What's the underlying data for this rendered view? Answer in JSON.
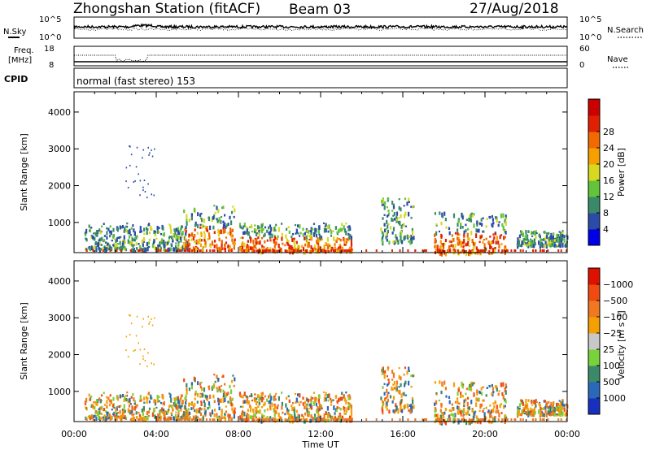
{
  "header": {
    "station": "Zhongshan Station (fitACF)",
    "beam": "Beam 03",
    "date": "27/Aug/2018"
  },
  "noise_panel": {
    "left_label": "N.Sky",
    "left_tick_top": "10^5",
    "left_tick_bottom": "10^0",
    "right_label": "N.Search",
    "right_tick_top": "10^5",
    "right_tick_bottom": "10^0"
  },
  "freq_panel": {
    "left_label_line1": "Freq.",
    "left_label_line2": "[MHz]",
    "left_tick_top": "18",
    "left_tick_bottom": "8",
    "right_label": "Nave",
    "right_tick_top": "60",
    "right_tick_bottom": "0"
  },
  "cpid_panel": {
    "label": "CPID",
    "text": "normal (fast stereo) 153"
  },
  "chart_data": [
    {
      "type": "heatmap",
      "name": "power",
      "ylabel": "Slant Range [km]",
      "ylim": [
        180,
        4550
      ],
      "yticks": [
        1000,
        2000,
        3000,
        4000
      ],
      "xticks": [
        "00:00",
        "04:00",
        "08:00",
        "12:00",
        "16:00",
        "20:00",
        "00:00"
      ],
      "colorbar": {
        "label": "Power [dB]",
        "tick_labels": [
          "4",
          "8",
          "12",
          "16",
          "20",
          "24",
          "28"
        ],
        "colors": [
          "#0000e6",
          "#2a4ba8",
          "#3a8a6a",
          "#62c43a",
          "#d8d820",
          "#f5a000",
          "#f06a00",
          "#e02000",
          "#cc0000"
        ]
      },
      "scatter_blocks": [
        {
          "t0": 0.5,
          "t1": 5.5,
          "r0": 300,
          "r1": 1000,
          "level": "low"
        },
        {
          "t0": 5.3,
          "t1": 7.8,
          "r0": 300,
          "r1": 1500,
          "level": "high"
        },
        {
          "t0": 8.0,
          "t1": 13.5,
          "r0": 250,
          "r1": 1000,
          "level": "high"
        },
        {
          "t0": 14.9,
          "t1": 16.5,
          "r0": 500,
          "r1": 1700,
          "level": "low"
        },
        {
          "t0": 17.5,
          "t1": 21.0,
          "r0": 200,
          "r1": 1300,
          "level": "high"
        },
        {
          "t0": 21.5,
          "t1": 24.0,
          "r0": 400,
          "r1": 800,
          "level": "low"
        }
      ]
    },
    {
      "type": "heatmap",
      "name": "velocity",
      "ylabel": "Slant Range [km]",
      "ylim": [
        180,
        4550
      ],
      "yticks": [
        1000,
        2000,
        3000,
        4000
      ],
      "xticks": [
        "00:00",
        "04:00",
        "08:00",
        "12:00",
        "16:00",
        "20:00",
        "00:00"
      ],
      "xlabel": "Time UT",
      "colorbar": {
        "label": "Velocity [m s⁻¹]",
        "tick_labels": [
          "1000",
          "500",
          "100",
          "25",
          "−25",
          "−100",
          "−500",
          "−1000"
        ],
        "colors": [
          "#1830c0",
          "#2a68b8",
          "#3a8a6a",
          "#7ad23a",
          "#c8c8c8",
          "#f5a000",
          "#f07820",
          "#f04a10",
          "#e01000"
        ]
      }
    }
  ]
}
